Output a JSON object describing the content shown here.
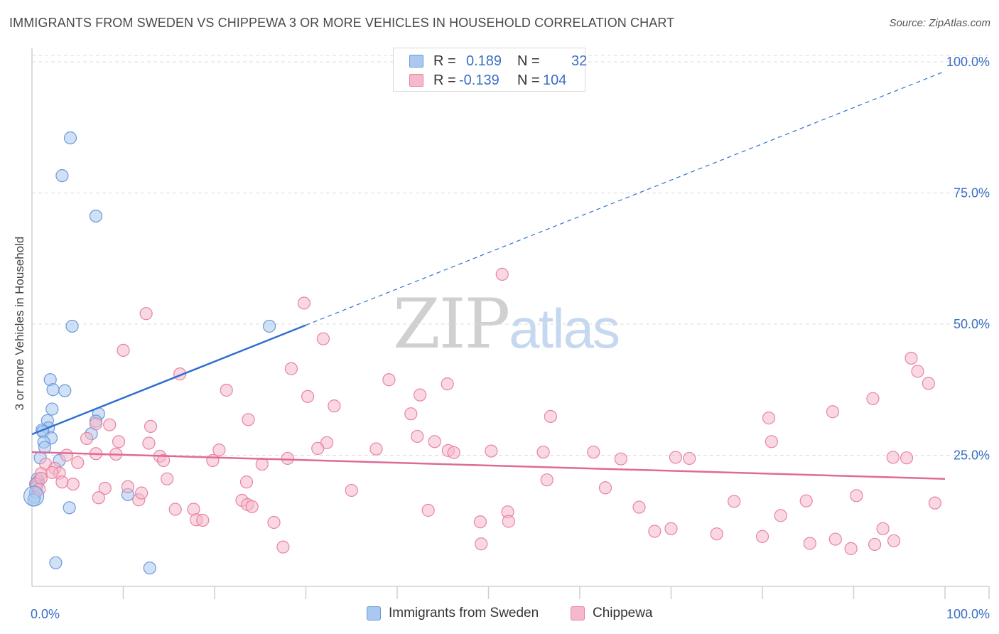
{
  "title": "IMMIGRANTS FROM SWEDEN VS CHIPPEWA 3 OR MORE VEHICLES IN HOUSEHOLD CORRELATION CHART",
  "source": "Source: ZipAtlas.com",
  "watermark": {
    "part1": "ZIP",
    "part2": "atlas"
  },
  "legend_top": {
    "rows": [
      {
        "r_label": "R =",
        "r_value": "0.189",
        "n_label": "N =",
        "n_value": "32"
      },
      {
        "r_label": "R =",
        "r_value": "-0.139",
        "n_label": "N =",
        "n_value": "104"
      }
    ]
  },
  "colors": {
    "blue_fill": "#aac8f0",
    "blue_stroke": "#6a9ad8",
    "blue_line": "#2f6fcf",
    "pink_fill": "#f6b8cc",
    "pink_stroke": "#e8849f",
    "pink_line": "#e06a97",
    "tick_color": "#3a6fc4",
    "grid": "#dcdcdc"
  },
  "chart_data": {
    "type": "scatter",
    "title": "IMMIGRANTS FROM SWEDEN VS CHIPPEWA 3 OR MORE VEHICLES IN HOUSEHOLD CORRELATION CHART",
    "xlabel": "",
    "ylabel": "3 or more Vehicles in Household",
    "xlim": [
      0,
      100
    ],
    "ylim": [
      0,
      100
    ],
    "x_tick_labels": [
      "0.0%",
      "100.0%"
    ],
    "y_tick_labels": [
      "25.0%",
      "50.0%",
      "75.0%",
      "100.0%"
    ],
    "y_ticks": [
      25,
      50,
      75,
      100
    ],
    "grid": true,
    "series": [
      {
        "name": "Immigrants from Sweden",
        "color": "blue",
        "points": [
          [
            4.2,
            85.5
          ],
          [
            3.3,
            78.3
          ],
          [
            7.0,
            70.6
          ],
          [
            26.0,
            49.6
          ],
          [
            4.4,
            49.6
          ],
          [
            2.0,
            39.4
          ],
          [
            2.3,
            37.5
          ],
          [
            3.6,
            37.3
          ],
          [
            2.2,
            33.8
          ],
          [
            7.3,
            32.9
          ],
          [
            1.7,
            31.6
          ],
          [
            1.8,
            30.2
          ],
          [
            1.1,
            29.8
          ],
          [
            6.5,
            29.1
          ],
          [
            1.2,
            29.5
          ],
          [
            7.0,
            31.5
          ],
          [
            2.1,
            28.3
          ],
          [
            1.3,
            27.5
          ],
          [
            1.4,
            26.5
          ],
          [
            0.9,
            24.5
          ],
          [
            3.0,
            24.0
          ],
          [
            0.6,
            20.5
          ],
          [
            0.7,
            20.0
          ],
          [
            0.4,
            19.5
          ],
          [
            0.5,
            19.0
          ],
          [
            0.4,
            18.0
          ],
          [
            0.3,
            17.0
          ],
          [
            10.5,
            17.5
          ],
          [
            4.1,
            15.0
          ],
          [
            2.6,
            4.5
          ],
          [
            12.9,
            3.5
          ],
          [
            0.2,
            16.5
          ]
        ]
      },
      {
        "name": "Chippewa",
        "color": "pink",
        "points": [
          [
            51.5,
            59.5
          ],
          [
            29.8,
            54.0
          ],
          [
            12.5,
            52.0
          ],
          [
            31.9,
            47.2
          ],
          [
            10.0,
            45.0
          ],
          [
            28.4,
            41.5
          ],
          [
            16.2,
            40.5
          ],
          [
            39.1,
            39.4
          ],
          [
            45.5,
            38.6
          ],
          [
            21.3,
            37.4
          ],
          [
            30.2,
            36.2
          ],
          [
            42.5,
            36.5
          ],
          [
            33.1,
            34.4
          ],
          [
            41.5,
            32.9
          ],
          [
            23.7,
            31.8
          ],
          [
            7.0,
            31.0
          ],
          [
            13.0,
            30.5
          ],
          [
            8.5,
            30.8
          ],
          [
            6.0,
            28.2
          ],
          [
            9.5,
            27.6
          ],
          [
            12.8,
            27.3
          ],
          [
            32.3,
            27.4
          ],
          [
            44.1,
            27.6
          ],
          [
            31.3,
            26.3
          ],
          [
            20.5,
            26.0
          ],
          [
            37.7,
            26.2
          ],
          [
            45.6,
            25.9
          ],
          [
            56.0,
            25.6
          ],
          [
            61.5,
            25.6
          ],
          [
            64.5,
            24.3
          ],
          [
            70.5,
            24.6
          ],
          [
            72.0,
            24.4
          ],
          [
            14.0,
            24.8
          ],
          [
            9.2,
            25.2
          ],
          [
            3.8,
            25.0
          ],
          [
            7.0,
            25.3
          ],
          [
            14.4,
            24.0
          ],
          [
            19.8,
            24.0
          ],
          [
            25.2,
            23.3
          ],
          [
            28.0,
            24.4
          ],
          [
            42.2,
            28.6
          ],
          [
            46.2,
            25.5
          ],
          [
            50.3,
            25.8
          ],
          [
            56.8,
            32.4
          ],
          [
            81.0,
            27.6
          ],
          [
            87.7,
            33.3
          ],
          [
            92.1,
            35.8
          ],
          [
            1.5,
            23.3
          ],
          [
            2.5,
            22.5
          ],
          [
            3.0,
            21.6
          ],
          [
            5.0,
            23.6
          ],
          [
            1.0,
            21.5
          ],
          [
            2.2,
            21.7
          ],
          [
            8.0,
            18.7
          ],
          [
            10.5,
            19.0
          ],
          [
            14.8,
            20.5
          ],
          [
            23.5,
            19.9
          ],
          [
            35.0,
            18.3
          ],
          [
            56.4,
            20.3
          ],
          [
            62.8,
            18.8
          ],
          [
            80.7,
            32.1
          ],
          [
            0.5,
            19.5
          ],
          [
            1.0,
            20.6
          ],
          [
            0.8,
            18.5
          ],
          [
            3.3,
            19.9
          ],
          [
            4.5,
            19.5
          ],
          [
            7.3,
            16.9
          ],
          [
            11.7,
            16.5
          ],
          [
            12.0,
            17.8
          ],
          [
            17.7,
            14.7
          ],
          [
            15.7,
            14.7
          ],
          [
            18.0,
            12.7
          ],
          [
            18.7,
            12.6
          ],
          [
            23.0,
            16.4
          ],
          [
            23.6,
            15.6
          ],
          [
            24.1,
            15.2
          ],
          [
            26.5,
            12.2
          ],
          [
            27.5,
            7.5
          ],
          [
            43.4,
            14.5
          ],
          [
            49.1,
            12.3
          ],
          [
            52.1,
            14.2
          ],
          [
            52.2,
            12.4
          ],
          [
            66.5,
            15.1
          ],
          [
            70.0,
            11.0
          ],
          [
            75.0,
            10.0
          ],
          [
            80.0,
            9.5
          ],
          [
            85.2,
            8.2
          ],
          [
            88.0,
            9.0
          ],
          [
            92.3,
            8.0
          ],
          [
            93.2,
            11.0
          ],
          [
            94.4,
            8.7
          ],
          [
            89.7,
            7.2
          ],
          [
            49.2,
            8.1
          ],
          [
            68.2,
            10.5
          ],
          [
            76.9,
            16.2
          ],
          [
            84.8,
            16.3
          ],
          [
            90.3,
            17.3
          ],
          [
            98.9,
            15.9
          ],
          [
            97.0,
            41.0
          ],
          [
            96.3,
            43.5
          ],
          [
            98.2,
            38.7
          ],
          [
            94.3,
            24.6
          ],
          [
            95.8,
            24.5
          ],
          [
            82.0,
            13.5
          ]
        ]
      }
    ],
    "trendlines": [
      {
        "series": "Immigrants from Sweden",
        "x_start": 0,
        "y_start": 29.0,
        "x_end": 30.0,
        "y_end": 49.8,
        "extended_dashed_to": [
          100,
          98.2
        ]
      },
      {
        "series": "Chippewa",
        "x_start": 0,
        "y_start": 25.6,
        "x_end": 100,
        "y_end": 20.5
      }
    ]
  },
  "legend_bottom": {
    "items": [
      {
        "label": "Immigrants from Sweden",
        "color": "blue"
      },
      {
        "label": "Chippewa",
        "color": "pink"
      }
    ]
  }
}
